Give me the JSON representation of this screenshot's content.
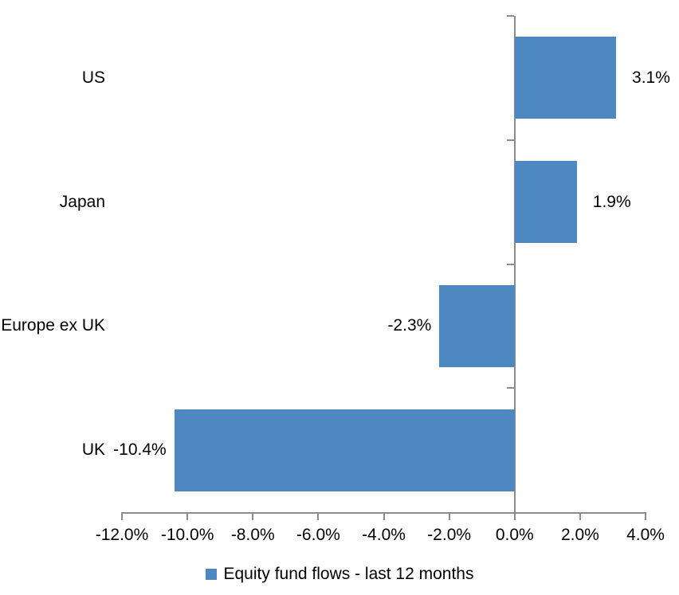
{
  "chart_data": {
    "type": "bar",
    "orientation": "horizontal",
    "title": "",
    "categories": [
      "US",
      "Japan",
      "Europe ex UK",
      "UK"
    ],
    "series": [
      {
        "name": "Equity fund flows - last 12 months",
        "values": [
          3.1,
          1.9,
          -2.3,
          -10.4
        ]
      }
    ],
    "data_labels": [
      "3.1%",
      "1.9%",
      "-2.3%",
      "-10.4%"
    ],
    "x_tick_labels": [
      "-12.0%",
      "-10.0%",
      "-8.0%",
      "-6.0%",
      "-4.0%",
      "-2.0%",
      "0.0%",
      "2.0%",
      "4.0%"
    ],
    "x_tick_values": [
      -12,
      -10,
      -8,
      -6,
      -4,
      -2,
      0,
      2,
      4
    ],
    "xlim": [
      -12,
      4
    ],
    "grid": false,
    "legend_position": "bottom",
    "colors": {
      "bar": "#4E88C0",
      "axis": "#8C8C8C",
      "text": "#000000",
      "background": "#FFFFFF"
    }
  }
}
